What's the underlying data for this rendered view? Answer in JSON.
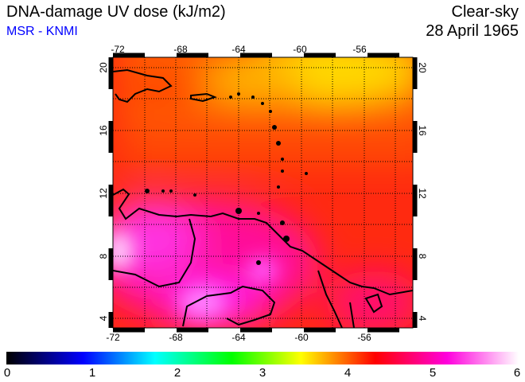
{
  "title": "DNA-damage UV dose (kJ/m2)",
  "credit": "MSR - KNMI",
  "condition": "Clear-sky",
  "date": "28 April 1965",
  "map": {
    "lon_labels": [
      "-72",
      "-68",
      "-64",
      "-60",
      "-56"
    ],
    "lat_labels": [
      "20",
      "16",
      "12",
      "8",
      "4"
    ]
  },
  "colorbar": {
    "labels": [
      "0",
      "1",
      "2",
      "3",
      "4",
      "5",
      "6"
    ],
    "min": 0,
    "max": 6,
    "colors": [
      "#000000",
      "#0000ff",
      "#00ffff",
      "#00ff00",
      "#ffff00",
      "#ff0000",
      "#ff00dd",
      "#ffffff"
    ]
  }
}
